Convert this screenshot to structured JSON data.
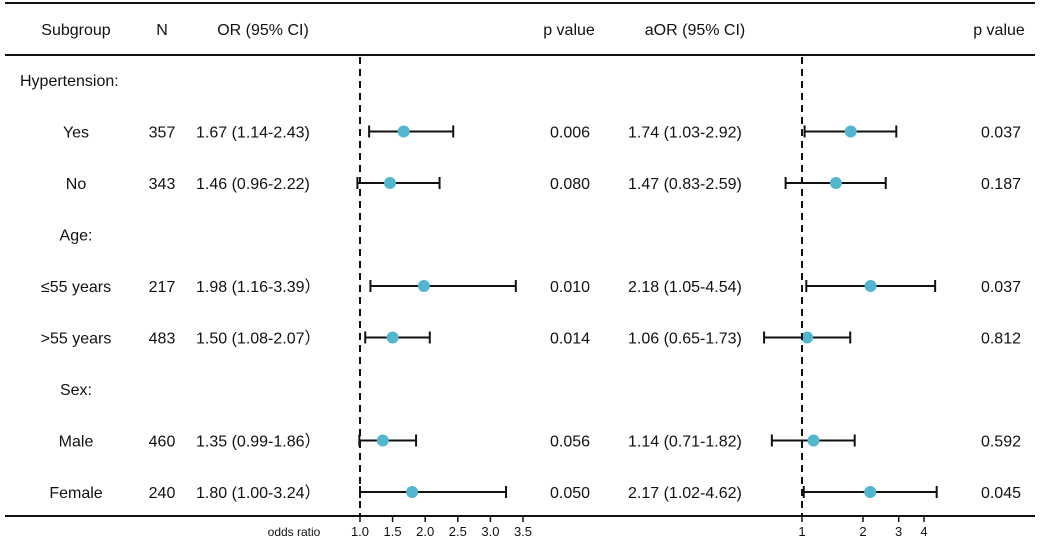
{
  "chart_data": {
    "type": "forest",
    "columns": {
      "subgroup": "Subgroup",
      "n": "N",
      "or": "OR (95% CI)",
      "p1": "p value",
      "aor": "aOR (95% CI)",
      "p2": "p value"
    },
    "rows": [
      {
        "kind": "header",
        "label": "Hypertension:"
      },
      {
        "kind": "data",
        "label": "Yes",
        "n": "357",
        "or_text": "1.67 (1.14-2.43)",
        "or": [
          1.67,
          1.14,
          2.43
        ],
        "p": "0.006",
        "aor_text": "1.74 (1.03-2.92)",
        "aor": [
          1.74,
          1.03,
          2.92
        ],
        "ap": "0.037"
      },
      {
        "kind": "data",
        "label": "No",
        "n": "343",
        "or_text": "1.46 (0.96-2.22)",
        "or": [
          1.46,
          0.96,
          2.22
        ],
        "p": "0.080",
        "aor_text": "1.47 (0.83-2.59)",
        "aor": [
          1.47,
          0.83,
          2.59
        ],
        "ap": "0.187"
      },
      {
        "kind": "header",
        "label": "Age:"
      },
      {
        "kind": "data",
        "label": "≤55 years",
        "n": "217",
        "or_text": "1.98 (1.16-3.39）",
        "or": [
          1.98,
          1.16,
          3.39
        ],
        "p": "0.010",
        "aor_text": "2.18 (1.05-4.54)",
        "aor": [
          2.18,
          1.05,
          4.54
        ],
        "ap": "0.037"
      },
      {
        "kind": "data",
        "label": ">55 years",
        "n": "483",
        "or_text": "1.50 (1.08-2.07）",
        "or": [
          1.5,
          1.08,
          2.07
        ],
        "p": "0.014",
        "aor_text": "1.06 (0.65-1.73)",
        "aor": [
          1.06,
          0.65,
          1.73
        ],
        "ap": "0.812"
      },
      {
        "kind": "header",
        "label": "Sex:"
      },
      {
        "kind": "data",
        "label": "Male",
        "n": "460",
        "or_text": "1.35 (0.99-1.86）",
        "or": [
          1.35,
          0.99,
          1.86
        ],
        "p": "0.056",
        "aor_text": "1.14 (0.71-1.82)",
        "aor": [
          1.14,
          0.71,
          1.82
        ],
        "ap": "0.592"
      },
      {
        "kind": "data",
        "label": "Female",
        "n": "240",
        "or_text": "1.80 (1.00-3.24）",
        "or": [
          1.8,
          1.0,
          3.24
        ],
        "p": "0.050",
        "aor_text": "2.17 (1.02-4.62)",
        "aor": [
          2.17,
          1.02,
          4.62
        ],
        "ap": "0.045"
      }
    ],
    "panel1": {
      "xlabel": "odds ratio",
      "reference": 1.0,
      "xlim": [
        1.0,
        3.5
      ],
      "ticks": [
        1.0,
        1.5,
        2.0,
        2.5,
        3.0,
        3.5
      ],
      "tick_labels": [
        "1.0",
        "1.5",
        "2.0",
        "2.5",
        "3.0",
        "3.5"
      ]
    },
    "panel2": {
      "reference": 1,
      "xlim": [
        1,
        4
      ],
      "ticks": [
        1,
        2,
        3,
        4
      ],
      "tick_labels": [
        "1",
        "2",
        "3",
        "4"
      ]
    },
    "colors": {
      "point": "#52b6cf",
      "line": "#111111"
    }
  }
}
